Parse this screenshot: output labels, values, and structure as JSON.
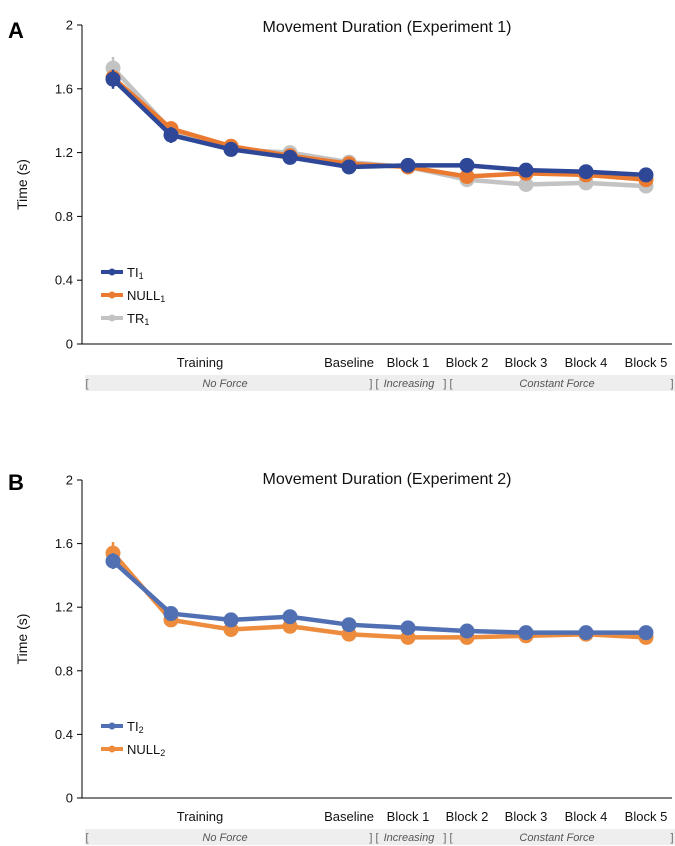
{
  "chart_data": [
    {
      "panel_label": "A",
      "type": "line",
      "title": "Movement Duration (Experiment 1)",
      "ylabel": "Time (s)",
      "xlabel": "",
      "ylim": [
        0,
        2
      ],
      "yticks": [
        "0",
        "0.4",
        "0.8",
        "1.2",
        "1.6",
        "2"
      ],
      "xtick_labels": [
        "Training",
        "Baseline",
        "Block 1",
        "Block 2",
        "Block 3",
        "Block 4",
        "Block 5"
      ],
      "conditions": {
        "left_bracket": "[",
        "no_force": "No Force",
        "sep1": "] [",
        "increasing": "Increasing",
        "sep2": "] [",
        "constant": "Constant Force",
        "right_bracket": "]"
      },
      "grid": false,
      "legend_position": "bottom-left",
      "series": [
        {
          "name": "TI",
          "subscript": "1",
          "color": "#2e4797",
          "values": [
            1.66,
            1.31,
            1.22,
            1.17,
            1.11,
            1.12,
            1.12,
            1.09,
            1.08,
            1.06
          ],
          "err": [
            0.06,
            0.05,
            0.03,
            0.03,
            0.02,
            0.02,
            0.02,
            0.02,
            0.02,
            0.02
          ]
        },
        {
          "name": "NULL",
          "subscript": "1",
          "color": "#ea7a30",
          "values": [
            1.67,
            1.35,
            1.24,
            1.18,
            1.13,
            1.11,
            1.05,
            1.07,
            1.06,
            1.03
          ],
          "err": [
            0.05,
            0.04,
            0.03,
            0.03,
            0.02,
            0.02,
            0.02,
            0.02,
            0.02,
            0.02
          ]
        },
        {
          "name": "TR",
          "subscript": "1",
          "color": "#c3c3c3",
          "values": [
            1.73,
            1.34,
            1.22,
            1.2,
            1.14,
            1.11,
            1.03,
            1.0,
            1.01,
            0.99
          ],
          "err": [
            0.07,
            0.04,
            0.03,
            0.03,
            0.02,
            0.02,
            0.02,
            0.02,
            0.02,
            0.02
          ]
        }
      ]
    },
    {
      "panel_label": "B",
      "type": "line",
      "title": "Movement Duration (Experiment 2)",
      "ylabel": "Time (s)",
      "xlabel": "",
      "ylim": [
        0,
        2
      ],
      "yticks": [
        "0",
        "0.4",
        "0.8",
        "1.2",
        "1.6",
        "2"
      ],
      "xtick_labels": [
        "Training",
        "Baseline",
        "Block 1",
        "Block 2",
        "Block 3",
        "Block 4",
        "Block 5"
      ],
      "conditions": {
        "left_bracket": "[",
        "no_force": "No Force",
        "sep1": "] [",
        "increasing": "Increasing",
        "sep2": "] [",
        "constant": "Constant Force",
        "right_bracket": "]"
      },
      "grid": false,
      "legend_position": "bottom-left",
      "series": [
        {
          "name": "TI",
          "subscript": "2",
          "color": "#5170b3",
          "values": [
            1.49,
            1.16,
            1.12,
            1.14,
            1.09,
            1.07,
            1.05,
            1.04,
            1.04,
            1.04
          ],
          "err": [
            0.05,
            0.03,
            0.02,
            0.02,
            0.02,
            0.02,
            0.02,
            0.02,
            0.02,
            0.02
          ]
        },
        {
          "name": "NULL",
          "subscript": "2",
          "color": "#ee8c3e",
          "values": [
            1.54,
            1.12,
            1.06,
            1.08,
            1.03,
            1.01,
            1.01,
            1.02,
            1.03,
            1.01
          ],
          "err": [
            0.07,
            0.03,
            0.02,
            0.02,
            0.02,
            0.02,
            0.02,
            0.02,
            0.02,
            0.02
          ]
        }
      ]
    }
  ]
}
